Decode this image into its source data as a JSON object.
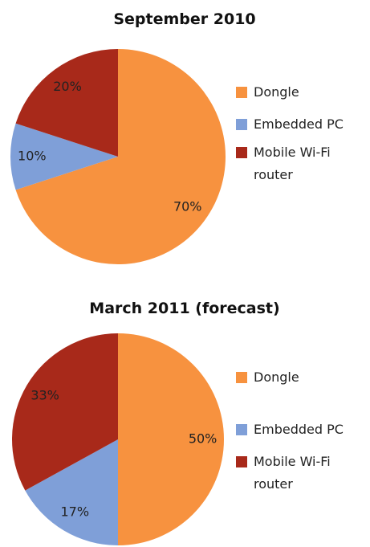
{
  "chart_data": [
    {
      "type": "pie",
      "title": "September 2010",
      "categories": [
        "Dongle",
        "Embedded PC",
        "Mobile Wi-Fi router"
      ],
      "values": [
        70,
        10,
        20
      ],
      "value_labels": [
        "70%",
        "10%",
        "20%"
      ],
      "colors": [
        "#f7923f",
        "#7f9fd8",
        "#a8291a"
      ]
    },
    {
      "type": "pie",
      "title": "March 2011 (forecast)",
      "categories": [
        "Dongle",
        "Embedded PC",
        "Mobile Wi-Fi router"
      ],
      "values": [
        50,
        17,
        33
      ],
      "value_labels": [
        "50%",
        "17%",
        "33%"
      ],
      "colors": [
        "#f7923f",
        "#7f9fd8",
        "#a8291a"
      ]
    }
  ]
}
